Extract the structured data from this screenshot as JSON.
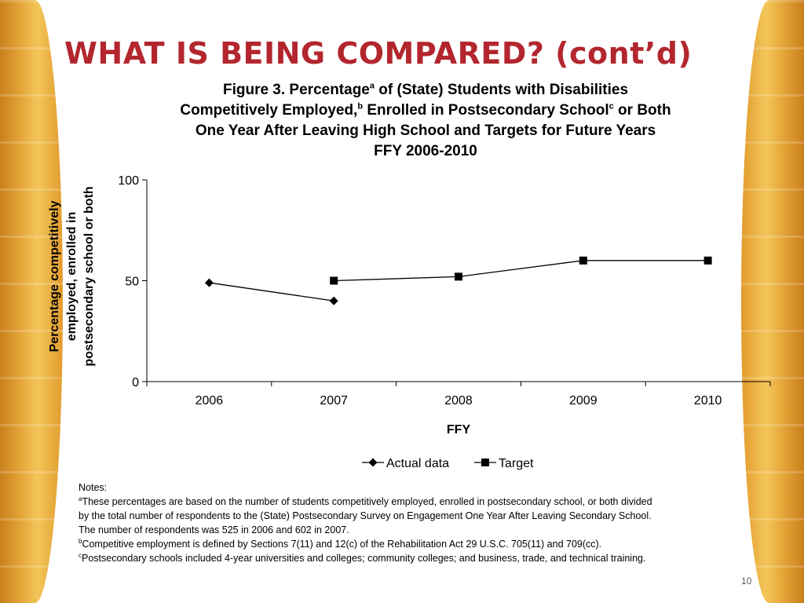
{
  "slide": {
    "title": "WHAT IS BEING COMPARED? (cont’d)",
    "page_number": "10",
    "decor_color_light": "#f3c65a",
    "decor_color_dark": "#c9801c",
    "title_color": "#b3262e"
  },
  "figure": {
    "line1_part1": "Figure 3. Percentage",
    "line1_sup": "a",
    "line1_part2": " of (State) Students with Disabilities",
    "line2_part1": "Competitively Employed,",
    "line2_sup1": "b",
    "line2_part2": " Enrolled in Postsecondary School",
    "line2_sup2": "c",
    "line2_part3": " or Both",
    "line3": "One Year After Leaving High School and Targets for Future Years",
    "line4": "FFY 2006-2010"
  },
  "chart_data": {
    "type": "line",
    "categories": [
      "2006",
      "2007",
      "2008",
      "2009",
      "2010"
    ],
    "xlabel": "FFY",
    "ylabel_lines": [
      "Percentage competitively",
      "employed, enrolled in",
      "postsecondary school or both"
    ],
    "ylim": [
      0,
      100
    ],
    "yticks": [
      0,
      50,
      100
    ],
    "grid": false,
    "legend_position": "bottom",
    "series": [
      {
        "name": "Actual data",
        "marker": "diamond",
        "values": [
          49,
          40,
          null,
          null,
          null
        ]
      },
      {
        "name": "Target",
        "marker": "square",
        "values": [
          null,
          50,
          52,
          60,
          60
        ]
      }
    ]
  },
  "notes": {
    "heading": "Notes:",
    "a_sup": "a",
    "a_line1": "These percentages are based on the number of  students competitively employed, enrolled in postsecondary school, or both divided",
    "a_line2": "by the total number of respondents to the (State) Postsecondary Survey on Engagement One Year After Leaving Secondary School.",
    "a_line3": "The number of respondents was 525 in 2006 and 602 in 2007.",
    "b_sup": "b",
    "b_text": "Competitive employment is defined by Sections 7(11) and 12(c) of the Rehabilitation Act 29 U.S.C. 705(11) and 709(cc).",
    "c_sup": "c",
    "c_text": "Postsecondary schools included 4-year universities and colleges; community colleges; and business, trade, and technical training."
  }
}
